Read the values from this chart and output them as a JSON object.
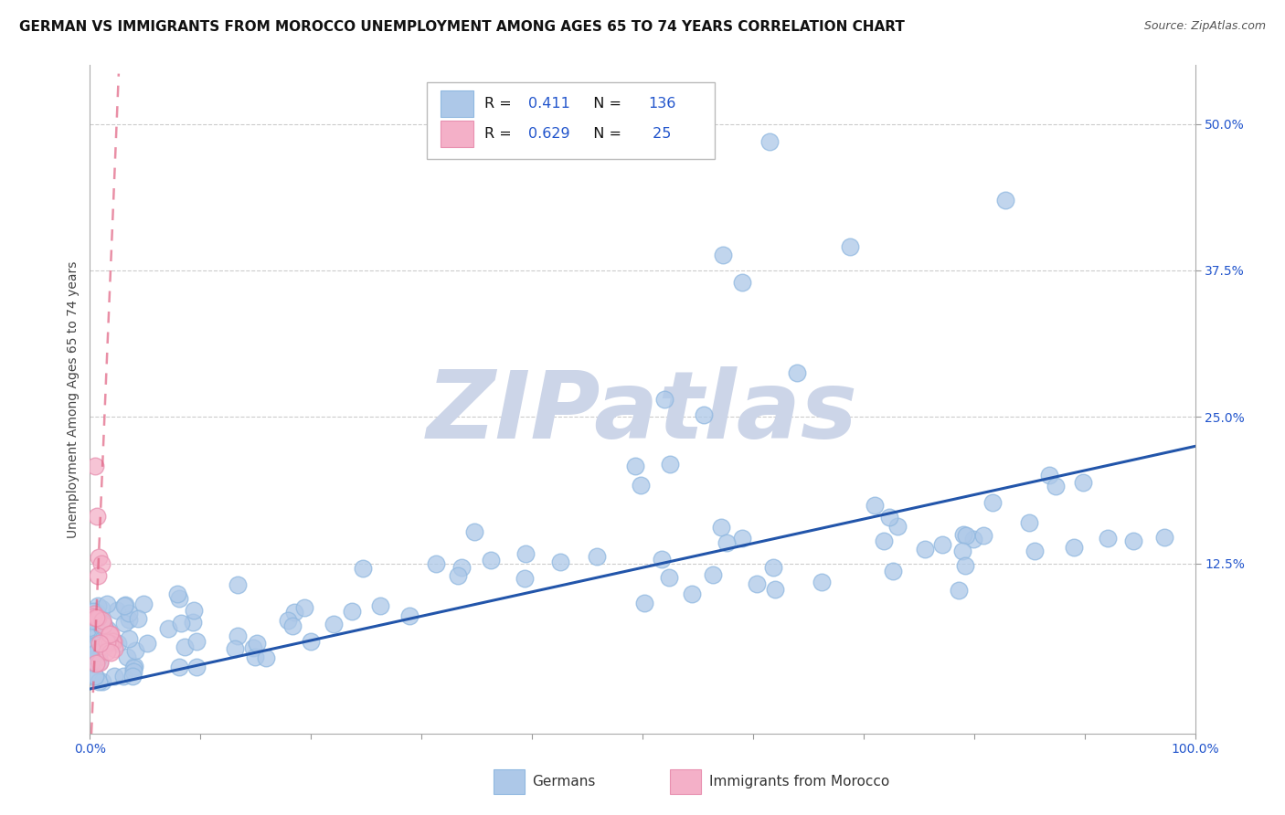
{
  "title": "GERMAN VS IMMIGRANTS FROM MOROCCO UNEMPLOYMENT AMONG AGES 65 TO 74 YEARS CORRELATION CHART",
  "source": "Source: ZipAtlas.com",
  "ylabel": "Unemployment Among Ages 65 to 74 years",
  "xlim": [
    0,
    1.0
  ],
  "ylim": [
    -0.02,
    0.55
  ],
  "german_R": 0.411,
  "german_N": 136,
  "morocco_R": 0.629,
  "morocco_N": 25,
  "german_color": "#adc8e8",
  "german_edge_color": "#90b8e0",
  "german_line_color": "#2255aa",
  "morocco_color": "#f4b0c8",
  "morocco_edge_color": "#e890b0",
  "morocco_line_color": "#e06080",
  "background_color": "#ffffff",
  "grid_color": "#cccccc",
  "watermark_text": "ZIPatlas",
  "watermark_color": "#ccd5e8",
  "title_fontsize": 11,
  "axis_label_fontsize": 10,
  "tick_fontsize": 10,
  "legend_value_color": "#2255cc",
  "tick_color": "#2255cc",
  "axis_label_color": "#444444"
}
